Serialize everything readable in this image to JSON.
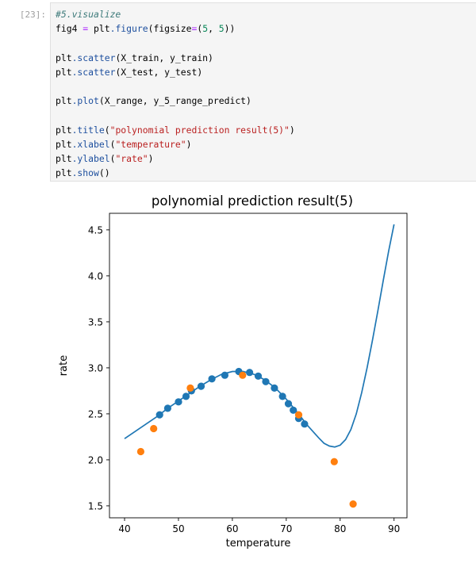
{
  "cell": {
    "prompt": "[23]:",
    "code_lines": [
      [
        {
          "t": "#5.visualize",
          "c": "comment"
        }
      ],
      [
        {
          "t": "fig4 ",
          "c": ""
        },
        {
          "t": "=",
          "c": "op"
        },
        {
          "t": " plt",
          "c": ""
        },
        {
          "t": ".figure",
          "c": "attr"
        },
        {
          "t": "(figsize",
          "c": ""
        },
        {
          "t": "=",
          "c": "op"
        },
        {
          "t": "(",
          "c": ""
        },
        {
          "t": "5",
          "c": "num"
        },
        {
          "t": ", ",
          "c": ""
        },
        {
          "t": "5",
          "c": "num"
        },
        {
          "t": "))",
          "c": ""
        }
      ],
      [],
      [
        {
          "t": "plt",
          "c": ""
        },
        {
          "t": ".scatter",
          "c": "attr"
        },
        {
          "t": "(X_train, y_train)",
          "c": ""
        }
      ],
      [
        {
          "t": "plt",
          "c": ""
        },
        {
          "t": ".scatter",
          "c": "attr"
        },
        {
          "t": "(X_test, y_test)",
          "c": ""
        }
      ],
      [],
      [
        {
          "t": "plt",
          "c": ""
        },
        {
          "t": ".plot",
          "c": "attr"
        },
        {
          "t": "(X_range, y_5_range_predict)",
          "c": ""
        }
      ],
      [],
      [
        {
          "t": "plt",
          "c": ""
        },
        {
          "t": ".title",
          "c": "attr"
        },
        {
          "t": "(",
          "c": ""
        },
        {
          "t": "\"polynomial prediction result(5)\"",
          "c": "str"
        },
        {
          "t": ")",
          "c": ""
        }
      ],
      [
        {
          "t": "plt",
          "c": ""
        },
        {
          "t": ".xlabel",
          "c": "attr"
        },
        {
          "t": "(",
          "c": ""
        },
        {
          "t": "\"temperature\"",
          "c": "str"
        },
        {
          "t": ")",
          "c": ""
        }
      ],
      [
        {
          "t": "plt",
          "c": ""
        },
        {
          "t": ".ylabel",
          "c": "attr"
        },
        {
          "t": "(",
          "c": ""
        },
        {
          "t": "\"rate\"",
          "c": "str"
        },
        {
          "t": ")",
          "c": ""
        }
      ],
      [
        {
          "t": "plt",
          "c": ""
        },
        {
          "t": ".show",
          "c": "attr"
        },
        {
          "t": "()",
          "c": ""
        }
      ]
    ]
  },
  "colors": {
    "series_blue": "#1f77b4",
    "series_orange": "#ff7f0e"
  },
  "chart_data": {
    "type": "scatter",
    "title": "polynomial prediction result(5)",
    "xlabel": "temperature",
    "ylabel": "rate",
    "xlim": [
      37.2,
      92.4
    ],
    "ylim": [
      1.37,
      4.68
    ],
    "xticks": [
      40,
      50,
      60,
      70,
      80,
      90
    ],
    "yticks": [
      1.5,
      2.0,
      2.5,
      3.0,
      3.5,
      4.0,
      4.5
    ],
    "ytick_labels": [
      "1.5",
      "2.0",
      "2.5",
      "3.0",
      "3.5",
      "4.0",
      "4.5"
    ],
    "grid": false,
    "series": [
      {
        "kind": "scatter",
        "color": "#1f77b4",
        "x": [
          46.5,
          48.0,
          50.0,
          51.4,
          52.4,
          54.2,
          56.2,
          58.6,
          61.2,
          63.2,
          64.8,
          66.2,
          67.8,
          69.3,
          70.4,
          71.3,
          72.3,
          73.4
        ],
        "y": [
          2.49,
          2.56,
          2.63,
          2.69,
          2.75,
          2.8,
          2.88,
          2.92,
          2.96,
          2.95,
          2.91,
          2.85,
          2.78,
          2.69,
          2.61,
          2.54,
          2.45,
          2.39
        ]
      },
      {
        "kind": "scatter",
        "color": "#ff7f0e",
        "x": [
          43.0,
          45.4,
          52.2,
          61.9,
          72.3,
          78.9,
          82.4
        ],
        "y": [
          2.09,
          2.34,
          2.78,
          2.92,
          2.49,
          1.98,
          1.52
        ]
      },
      {
        "kind": "line",
        "color": "#1f77b4",
        "x": [
          40,
          42,
          44,
          46,
          48,
          50,
          52,
          54,
          56,
          58,
          60,
          62,
          64,
          66,
          68,
          70,
          72,
          74,
          76,
          77,
          78,
          79,
          80,
          81,
          82,
          83,
          84,
          85,
          86,
          87,
          88,
          89,
          90
        ],
        "y": [
          2.23,
          2.31,
          2.39,
          2.47,
          2.56,
          2.64,
          2.72,
          2.8,
          2.87,
          2.93,
          2.96,
          2.96,
          2.93,
          2.87,
          2.78,
          2.66,
          2.52,
          2.37,
          2.24,
          2.18,
          2.15,
          2.14,
          2.16,
          2.22,
          2.33,
          2.5,
          2.73,
          3.0,
          3.3,
          3.62,
          3.95,
          4.27,
          4.56
        ]
      }
    ]
  }
}
